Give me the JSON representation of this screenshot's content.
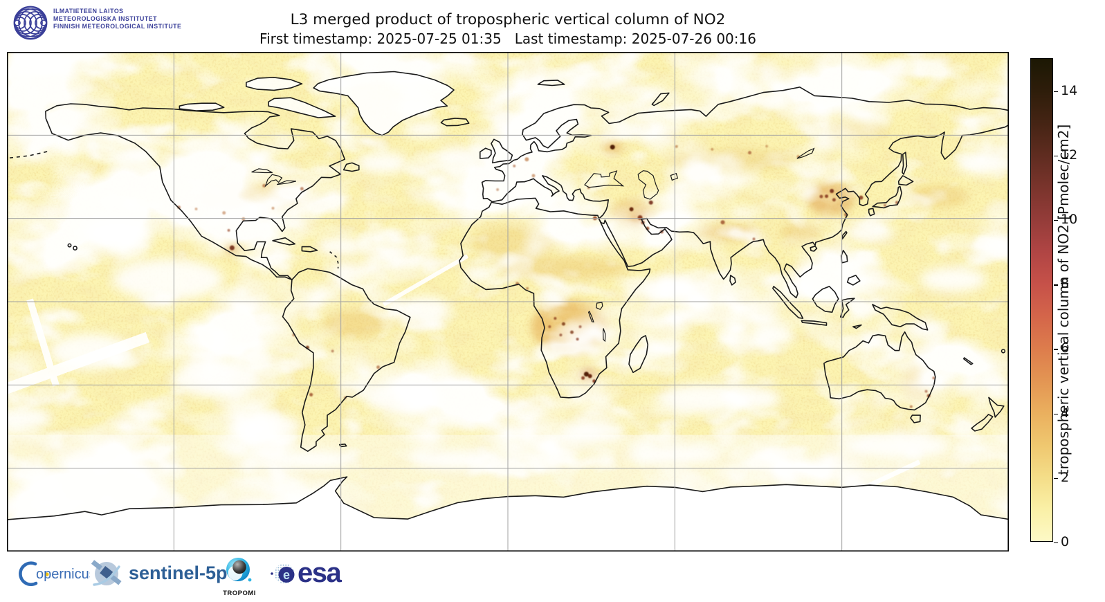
{
  "header": {
    "fmi_lines": [
      "ILMATIETEEN LAITOS",
      "METEOROLOGISKA INSTITUTET",
      "FINNISH METEOROLOGICAL INSTITUTE"
    ],
    "title": "L3 merged product of tropospheric vertical column of NO2",
    "subtitle": "First timestamp: 2025-07-25 01:35   Last timestamp: 2025-07-26 00:16",
    "first_timestamp": "2025-07-25 01:35",
    "last_timestamp": "2025-07-26 00:16"
  },
  "colorbar": {
    "label": "tropospheric vertical column of NO2 [Pmolec/cm2]",
    "ticks": [
      0,
      2,
      4,
      6,
      8,
      10,
      12,
      14
    ],
    "vmin": 0,
    "vmax": 15,
    "gradient_stops": [
      [
        0,
        "#fdf9c6"
      ],
      [
        1,
        "#faf0a6"
      ],
      [
        2,
        "#f4dd88"
      ],
      [
        3,
        "#efc76f"
      ],
      [
        4,
        "#eaaf5e"
      ],
      [
        5,
        "#e39553"
      ],
      [
        6,
        "#dd7c4c"
      ],
      [
        7,
        "#d4654a"
      ],
      [
        8,
        "#c65149"
      ],
      [
        9,
        "#b04544"
      ],
      [
        10,
        "#943c39"
      ],
      [
        11,
        "#7a342c"
      ],
      [
        12,
        "#5f2c20"
      ],
      [
        13,
        "#452414"
      ],
      [
        14,
        "#2e1d0a"
      ],
      [
        15,
        "#1c1804"
      ]
    ]
  },
  "map": {
    "base_color": "#fcf4b2",
    "coastline_color": "#1a1a1a",
    "gridline_color": "#a0a0a0",
    "grid_lons": [
      -120,
      -60,
      0,
      60,
      120
    ],
    "grid_lats": [
      60,
      30,
      0,
      -30,
      -60
    ],
    "enhancements": [
      [
        22,
        -9,
        55,
        38,
        "#e09a3a",
        0.5
      ],
      [
        20,
        12,
        92,
        16,
        "#eac469",
        0.45
      ],
      [
        2,
        21,
        60,
        25,
        "#f0d27c",
        0.5
      ],
      [
        45,
        32,
        32,
        20,
        "#e0a348",
        0.4
      ],
      [
        79,
        25,
        45,
        12,
        "#e5ad52",
        0.45
      ],
      [
        116,
        37,
        34,
        24,
        "#dc9440",
        0.5
      ],
      [
        155,
        38,
        42,
        16,
        "#eec868",
        0.5
      ],
      [
        80,
        51,
        95,
        16,
        "#ecca70",
        0.45
      ],
      [
        125,
        62,
        45,
        12,
        "#ecca70",
        0.4
      ],
      [
        -85,
        38,
        50,
        20,
        "#ecc368",
        0.5
      ],
      [
        -100,
        38,
        42,
        18,
        "#efd07c",
        0.45
      ],
      [
        -55,
        -8,
        45,
        20,
        "#eec76d",
        0.5
      ],
      [
        147,
        -29,
        20,
        26,
        "#e8ba5e",
        0.4
      ],
      [
        37.6,
        55.7,
        14,
        10,
        "#d98a35",
        0.45
      ],
      [
        -99,
        19.4,
        10,
        8,
        "#c96f28",
        0.5
      ],
      [
        28.8,
        -26.3,
        12,
        9,
        "#c05a20",
        0.5
      ],
      [
        47,
        30,
        14,
        9,
        "#cf7428",
        0.5
      ],
      [
        105,
        25,
        30,
        14,
        "#e8bc5e",
        0.4
      ]
    ],
    "hotspots": [
      [
        37.6,
        55.7,
        3.5,
        "#4a1505",
        0.95
      ],
      [
        44.4,
        33.3,
        3,
        "#5c1a06",
        0.9
      ],
      [
        47.5,
        30.3,
        3.5,
        "#7c2810",
        0.85
      ],
      [
        48.5,
        28.5,
        2.5,
        "#7c2810",
        0.8
      ],
      [
        50.2,
        26.4,
        2.5,
        "#8c3212",
        0.8
      ],
      [
        55.3,
        25.2,
        2.5,
        "#8c3212",
        0.7
      ],
      [
        51.4,
        35.7,
        3,
        "#6b2008",
        0.85
      ],
      [
        31.3,
        30.1,
        3,
        "#8c3212",
        0.8
      ],
      [
        28.2,
        -26.1,
        3.5,
        "#4a1505",
        0.95
      ],
      [
        29.5,
        -26.8,
        3,
        "#5c1a06",
        0.9
      ],
      [
        31,
        -28.6,
        2.5,
        "#7c2810",
        0.85
      ],
      [
        27,
        -27.5,
        2.5,
        "#7c2810",
        0.8
      ],
      [
        17,
        -6,
        2,
        "#7c2810",
        0.7
      ],
      [
        20,
        -8,
        2.5,
        "#6b2008",
        0.75
      ],
      [
        23,
        -11,
        2.5,
        "#6b2008",
        0.7
      ],
      [
        25,
        -13.5,
        2,
        "#7c2810",
        0.7
      ],
      [
        19,
        -12,
        2,
        "#7c2810",
        0.65
      ],
      [
        26,
        -9,
        2,
        "#7c2810",
        0.6
      ],
      [
        15,
        -9,
        2,
        "#7c2810",
        0.6
      ],
      [
        116.4,
        39.9,
        3,
        "#6b2008",
        0.85
      ],
      [
        114.5,
        38,
        2.5,
        "#7c2810",
        0.8
      ],
      [
        117.2,
        36.7,
        2.5,
        "#7c2810",
        0.75
      ],
      [
        112.6,
        37.9,
        2.5,
        "#7c2810",
        0.7
      ],
      [
        121.5,
        31.3,
        2.5,
        "#8c3212",
        0.6
      ],
      [
        126.9,
        37.5,
        3,
        "#7c2810",
        0.8
      ],
      [
        139.8,
        35.7,
        2.5,
        "#8c3212",
        0.6
      ],
      [
        135.5,
        34.7,
        2,
        "#8c3212",
        0.55
      ],
      [
        77.2,
        28.6,
        3,
        "#8c3212",
        0.7
      ],
      [
        88.4,
        22.6,
        2,
        "#8c3212",
        0.6
      ],
      [
        6.8,
        51.3,
        3,
        "#b06028",
        0.6
      ],
      [
        2.3,
        48.9,
        2,
        "#a04c1c",
        0.55
      ],
      [
        9.2,
        45.4,
        2.5,
        "#b06028",
        0.55
      ],
      [
        29,
        41,
        2,
        "#a04c1c",
        0.5
      ],
      [
        -3.7,
        40.4,
        2,
        "#a04c1c",
        0.45
      ],
      [
        -87.6,
        41.8,
        2.5,
        "#a04c1c",
        0.6
      ],
      [
        -74,
        40.7,
        2.5,
        "#a04c1c",
        0.6
      ],
      [
        -84.4,
        33.7,
        2,
        "#b06028",
        0.5
      ],
      [
        -95,
        29.8,
        2.5,
        "#b06028",
        0.55
      ],
      [
        -102,
        32,
        2.5,
        "#b06028",
        0.5
      ],
      [
        -118.2,
        34,
        2.5,
        "#a04c1c",
        0.6
      ],
      [
        -112,
        33.4,
        2,
        "#b06028",
        0.45
      ],
      [
        -99.1,
        19.4,
        3.5,
        "#6b2008",
        0.85
      ],
      [
        -100.3,
        25.7,
        2,
        "#8c3212",
        0.6
      ],
      [
        -77,
        -12,
        2,
        "#a04c1c",
        0.55
      ],
      [
        -72,
        -16.5,
        2.5,
        "#6b2008",
        0.8
      ],
      [
        -70.7,
        -33.5,
        2.5,
        "#8c3212",
        0.7
      ],
      [
        -46.6,
        -23.6,
        2.5,
        "#a04c1c",
        0.6
      ],
      [
        -58.4,
        -34.6,
        2,
        "#a04c1c",
        0.5
      ],
      [
        -63,
        -17.8,
        2,
        "#8c3212",
        0.5
      ],
      [
        151.2,
        -33.9,
        2.5,
        "#8c3212",
        0.75
      ],
      [
        153,
        -27.5,
        2,
        "#a04c1c",
        0.6
      ],
      [
        144.9,
        -37.8,
        2,
        "#a04c1c",
        0.6
      ],
      [
        150.3,
        -32.3,
        2,
        "#8c3212",
        0.55
      ],
      [
        60.6,
        55.9,
        2,
        "#a04c1c",
        0.5
      ],
      [
        73.4,
        54.9,
        2,
        "#a04c1c",
        0.45
      ],
      [
        86.9,
        53.7,
        2.5,
        "#8c3212",
        0.55
      ],
      [
        104.3,
        52.3,
        2,
        "#a04c1c",
        0.5
      ],
      [
        93,
        56,
        2,
        "#a04c1c",
        0.4
      ],
      [
        3.4,
        6.5,
        2.5,
        "#a04c1c",
        0.6
      ],
      [
        7,
        4.8,
        2,
        "#a04c1c",
        0.5
      ]
    ],
    "cloud_gaps": [
      [
        -122,
        8,
        80,
        30
      ],
      [
        -140,
        25,
        50,
        22
      ],
      [
        -150,
        -18,
        60,
        26
      ],
      [
        -105,
        -28,
        65,
        26
      ],
      [
        -88,
        -45,
        55,
        20
      ],
      [
        -30,
        -3,
        38,
        20
      ],
      [
        -38,
        -35,
        55,
        22
      ],
      [
        -18,
        52,
        32,
        16
      ],
      [
        -45,
        50,
        38,
        16
      ],
      [
        -30,
        62,
        30,
        12
      ],
      [
        70,
        -35,
        65,
        22
      ],
      [
        95,
        -12,
        32,
        18
      ],
      [
        88,
        -35,
        40,
        18
      ],
      [
        140,
        -52,
        75,
        18
      ],
      [
        172,
        50,
        45,
        18
      ],
      [
        15,
        1,
        20,
        11
      ],
      [
        84,
        32,
        20,
        8
      ],
      [
        30,
        -47,
        50,
        16
      ],
      [
        160,
        8,
        48,
        18
      ],
      [
        -175,
        -42,
        45,
        18
      ],
      [
        178,
        20,
        40,
        16
      ],
      [
        -60,
        20,
        35,
        14
      ],
      [
        -135,
        52,
        40,
        15
      ],
      [
        60,
        5,
        30,
        14
      ],
      [
        -10,
        10,
        25,
        12
      ],
      [
        105,
        5,
        22,
        12
      ],
      [
        130,
        25,
        35,
        15
      ],
      [
        -70,
        -57,
        60,
        14
      ],
      [
        60,
        -55,
        70,
        14
      ],
      [
        -20,
        -57,
        60,
        14
      ],
      [
        150,
        -10,
        30,
        14
      ]
    ]
  },
  "footer": {
    "copernicus_text": "opernicus",
    "sentinel_text": "sentinel-5p",
    "tropomi_text": "TROPOMI",
    "esa_text": "esa"
  }
}
